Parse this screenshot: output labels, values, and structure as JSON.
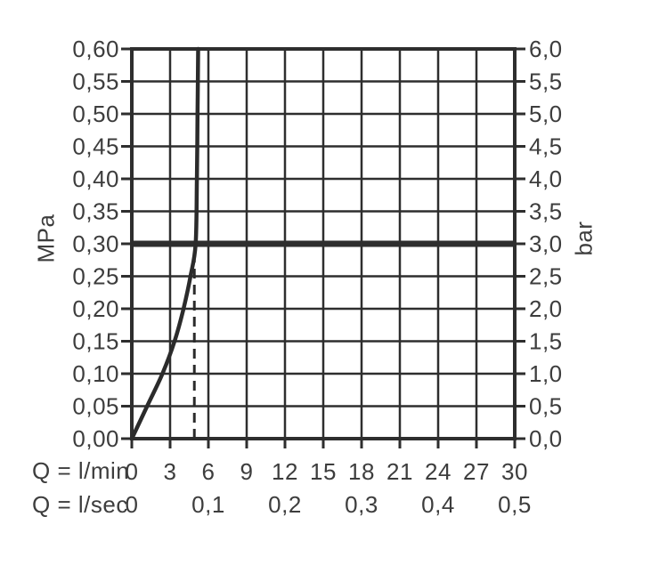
{
  "chart_data": {
    "type": "line",
    "title": "",
    "background": "#ffffff",
    "line_color": "#2b2b2b",
    "grid_color": "#2e2e2e",
    "text_color": "#3d3d3d",
    "grid": true,
    "axes": {
      "y_left_title": "MPa",
      "y_right_title": "bar",
      "x_primary_title": "Q = l/min",
      "x_secondary_title": "Q = l/sec"
    },
    "xlim_lmin": [
      0,
      30
    ],
    "ylim_mpa": [
      0.0,
      0.6
    ],
    "ylim_bar": [
      0.0,
      6.0
    ],
    "x_ticks_lmin": [
      0,
      3,
      6,
      9,
      12,
      15,
      18,
      21,
      24,
      27,
      30
    ],
    "x_tick_labels_lmin": [
      "0",
      "3",
      "6",
      "9",
      "12",
      "15",
      "18",
      "21",
      "24",
      "27",
      "30"
    ],
    "x_ticks_lsec_at_lmin": [
      0,
      6,
      12,
      18,
      24,
      30
    ],
    "x_tick_labels_lsec": [
      "0",
      "0,1",
      "0,2",
      "0,3",
      "0,4",
      "0,5"
    ],
    "y_ticks_mpa": [
      0.6,
      0.55,
      0.5,
      0.45,
      0.4,
      0.35,
      0.3,
      0.25,
      0.2,
      0.15,
      0.1,
      0.05,
      0.0
    ],
    "y_tick_labels_mpa": [
      "0,60",
      "0,55",
      "0,50",
      "0,45",
      "0,40",
      "0,35",
      "0,30",
      "0,25",
      "0,20",
      "0,15",
      "0,10",
      "0,05",
      "0,00"
    ],
    "y_tick_labels_bar": [
      "6,0",
      "5,5",
      "5,0",
      "4,5",
      "4,0",
      "3,5",
      "3,0",
      "2,5",
      "2,0",
      "1,5",
      "1,0",
      "0,5",
      "0,0"
    ],
    "series": [
      {
        "name": "flow-characteristic-curve",
        "points_q_lmin_vs_mpa": [
          [
            0,
            0.0
          ],
          [
            1.2,
            0.05
          ],
          [
            2.4,
            0.1
          ],
          [
            3.35,
            0.15
          ],
          [
            4.05,
            0.2
          ],
          [
            4.6,
            0.25
          ],
          [
            5.0,
            0.3
          ],
          [
            5.1,
            0.4
          ],
          [
            5.15,
            0.5
          ],
          [
            5.2,
            0.6
          ]
        ]
      }
    ],
    "reference_line": {
      "value_mpa": 0.3,
      "value_bar": 3.0
    },
    "dashed_marker": {
      "q_lmin": 4.9,
      "from_mpa": 0.0,
      "to_mpa": 0.28
    }
  }
}
